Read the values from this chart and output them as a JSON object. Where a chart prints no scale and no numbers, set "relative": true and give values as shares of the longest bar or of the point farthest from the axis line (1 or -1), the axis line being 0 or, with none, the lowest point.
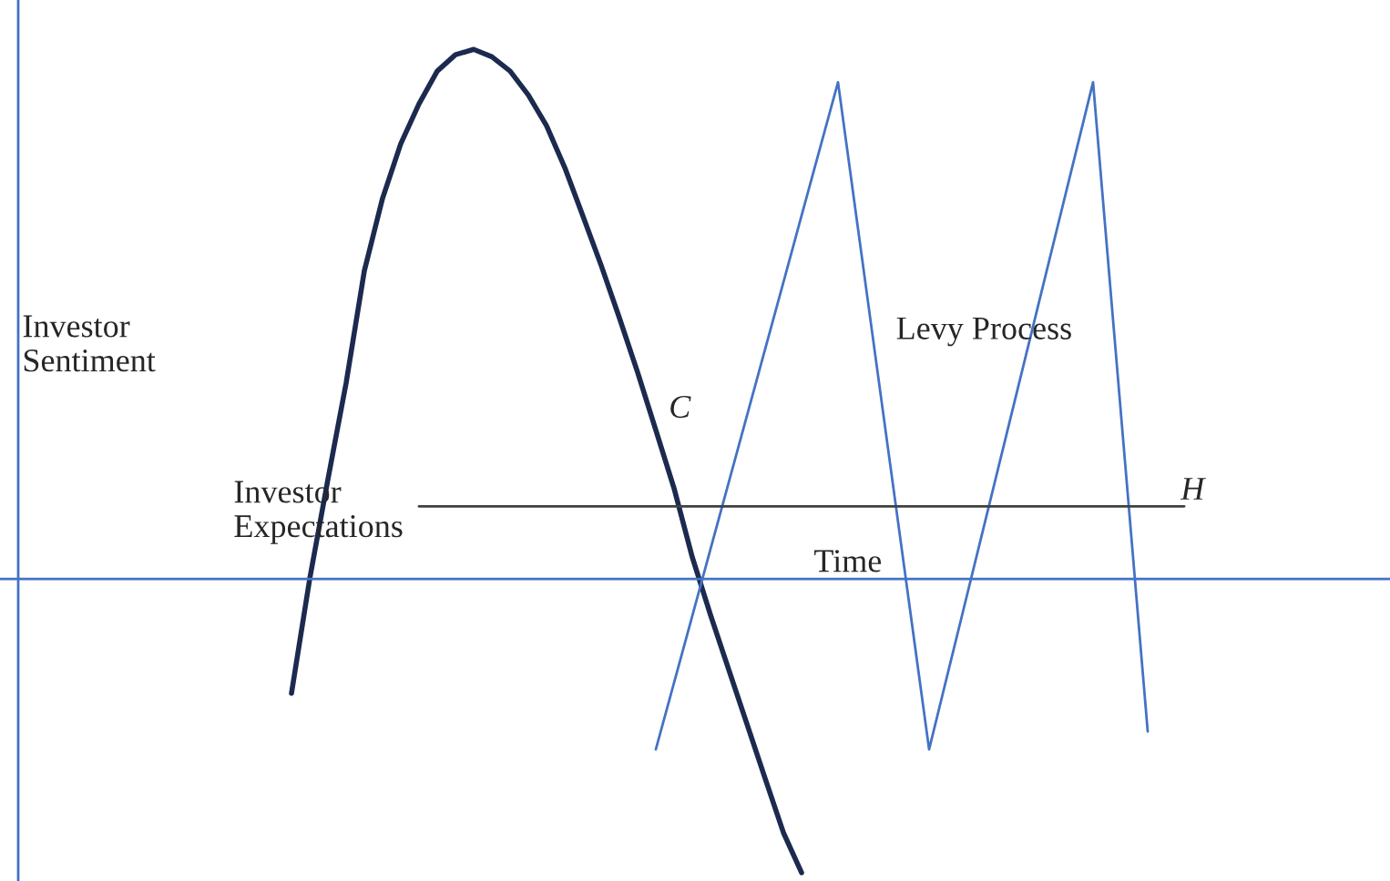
{
  "chart_data": {
    "type": "line",
    "relative": true,
    "xlabel": "Time",
    "ylabel": "Investor Sentiment",
    "categories": [
      null,
      null,
      null,
      null,
      null,
      null,
      null,
      null,
      null,
      null,
      null,
      null,
      null,
      null,
      null,
      null,
      null,
      null,
      null,
      null,
      null,
      null,
      null,
      null,
      null,
      null,
      null,
      null,
      null,
      null,
      null,
      null,
      null,
      null,
      null,
      null,
      null,
      null,
      null,
      null,
      null,
      null,
      null,
      null,
      null,
      null,
      null,
      null,
      null,
      null,
      null,
      null,
      null,
      null,
      null,
      null,
      null,
      null,
      null,
      null,
      null,
      null,
      null,
      null,
      null,
      null,
      null,
      null,
      null,
      null,
      null,
      null,
      null,
      null,
      null,
      null
    ],
    "series": [
      {
        "color": "#1b2a4e",
        "values": [
          null,
          null,
          null,
          null,
          null,
          null,
          null,
          null,
          null,
          null,
          null,
          null,
          null,
          null,
          null,
          -0.216,
          0,
          0.188,
          0.37,
          0.582,
          0.719,
          0.822,
          0.897,
          0.959,
          0.99,
          1,
          0.986,
          0.959,
          0.914,
          0.856,
          0.777,
          0.685,
          0.592,
          0.493,
          0.39,
          0.281,
          0.171,
          0.041,
          -0.068,
          -0.171,
          -0.274,
          -0.377,
          -0.479,
          -0.555,
          null,
          null,
          null,
          null,
          null,
          null,
          null,
          null,
          null,
          null,
          null,
          null,
          null,
          null,
          null,
          null,
          null,
          null,
          null,
          null,
          null,
          null,
          null,
          null,
          null,
          null,
          null,
          null,
          null,
          null,
          null,
          null
        ]
      },
      {
        "color": "#4472c4",
        "values": [
          null,
          null,
          null,
          null,
          null,
          null,
          null,
          null,
          null,
          null,
          null,
          null,
          null,
          null,
          null,
          null,
          null,
          null,
          null,
          null,
          null,
          null,
          null,
          null,
          null,
          null,
          null,
          null,
          null,
          null,
          null,
          null,
          null,
          null,
          null,
          -0.322,
          -0.196,
          -0.07,
          0.056,
          0.182,
          0.308,
          0.434,
          0.56,
          0.686,
          0.812,
          0.938,
          0.686,
          0.434,
          0.182,
          -0.07,
          -0.322,
          -0.182,
          -0.042,
          0.098,
          0.238,
          0.378,
          0.518,
          0.658,
          0.798,
          0.938,
          0.529,
          0.121,
          -0.288,
          null,
          null,
          null,
          null,
          null,
          null,
          null,
          null,
          null,
          null,
          null,
          null,
          null
        ]
      },
      {
        "color": "#404040",
        "values": [
          null,
          null,
          null,
          null,
          null,
          null,
          null,
          null,
          null,
          null,
          null,
          null,
          null,
          null,
          null,
          null,
          null,
          null,
          null,
          null,
          null,
          null,
          0.137,
          0.137,
          0.137,
          0.137,
          0.137,
          0.137,
          0.137,
          0.137,
          0.137,
          0.137,
          0.137,
          0.137,
          0.137,
          0.137,
          0.137,
          0.137,
          0.137,
          0.137,
          0.137,
          0.137,
          0.137,
          0.137,
          0.137,
          0.137,
          0.137,
          0.137,
          0.137,
          0.137,
          0.137,
          0.137,
          0.137,
          0.137,
          0.137,
          0.137,
          0.137,
          0.137,
          0.137,
          0.137,
          0.137,
          0.137,
          0.137,
          0.137,
          0.137,
          null,
          null,
          null,
          null,
          null,
          null,
          null,
          null,
          null,
          null,
          null
        ]
      }
    ],
    "ref_lines": [
      {
        "axis": "y",
        "value": 0,
        "color": "#4472c4"
      }
    ],
    "annotations": [
      "C",
      "H",
      "Levy Process",
      "Investor\nExpectations"
    ]
  }
}
